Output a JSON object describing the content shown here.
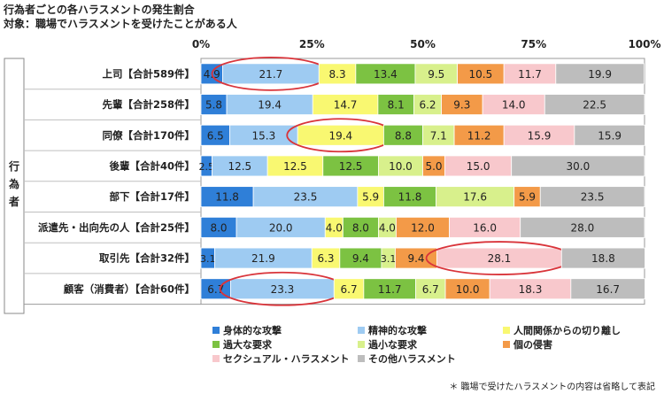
{
  "title": "行為者ごとの各ハラスメントの発生割合",
  "subtitle": "対象：職場でハラスメントを受けたことがある人",
  "footnote": "＊ 職場で受けたハラスメントの内容は省略して表記",
  "chart_data": {
    "type": "bar",
    "stacked": "100%",
    "orientation": "horizontal",
    "group_label": "行為者",
    "x_ticks": [
      "0%",
      "25%",
      "50%",
      "75%",
      "100%"
    ],
    "xlim": [
      0,
      100
    ],
    "legend_position": "bottom",
    "categories": [
      "上司【合計589件】",
      "先輩【合計258件】",
      "同僚【合計170件】",
      "後輩【合計40件】",
      "部下【合計17件】",
      "派遣先・出向先の人【合計25件】",
      "取引先【合計32件】",
      "顧客（消費者）【合計60件】"
    ],
    "series": [
      {
        "name": "身体的な攻撃",
        "color": "#2f7fd8",
        "values": [
          4.9,
          5.8,
          6.5,
          2.5,
          11.8,
          8.0,
          3.1,
          6.7
        ]
      },
      {
        "name": "精神的な攻撃",
        "color": "#9ecbf2",
        "values": [
          21.7,
          19.4,
          15.3,
          12.5,
          23.5,
          20.0,
          21.9,
          23.3
        ]
      },
      {
        "name": "人間関係からの切り離し",
        "color": "#f9f871",
        "values": [
          8.3,
          14.7,
          19.4,
          12.5,
          5.9,
          4.0,
          6.3,
          6.7
        ]
      },
      {
        "name": "過大な要求",
        "color": "#7cc242",
        "values": [
          13.4,
          8.1,
          8.8,
          12.5,
          11.8,
          8.0,
          9.4,
          11.7
        ]
      },
      {
        "name": "過小な要求",
        "color": "#d8f08c",
        "values": [
          9.5,
          6.2,
          7.1,
          10.0,
          17.6,
          4.0,
          3.1,
          6.7
        ]
      },
      {
        "name": "個の侵害",
        "color": "#f39a48",
        "values": [
          10.5,
          9.3,
          11.2,
          5.0,
          5.9,
          12.0,
          9.4,
          10.0
        ]
      },
      {
        "name": "セクシュアル・ハラスメント",
        "color": "#f8c8cc",
        "values": [
          11.7,
          14.0,
          15.9,
          15.0,
          0,
          16.0,
          28.1,
          18.3
        ]
      },
      {
        "name": "その他ハラスメント",
        "color": "#bdbdbd",
        "values": [
          19.9,
          22.5,
          15.9,
          30.0,
          23.5,
          28.0,
          18.8,
          16.7
        ]
      }
    ],
    "highlights": [
      {
        "category": "上司【合計589件】",
        "series": "精神的な攻撃"
      },
      {
        "category": "同僚【合計170件】",
        "series": "人間関係からの切り離し"
      },
      {
        "category": "取引先【合計32件】",
        "series": "セクシュアル・ハラスメント"
      },
      {
        "category": "顧客（消費者）【合計60件】",
        "series": "精神的な攻撃"
      }
    ],
    "highlight_color": "#d9343a"
  }
}
